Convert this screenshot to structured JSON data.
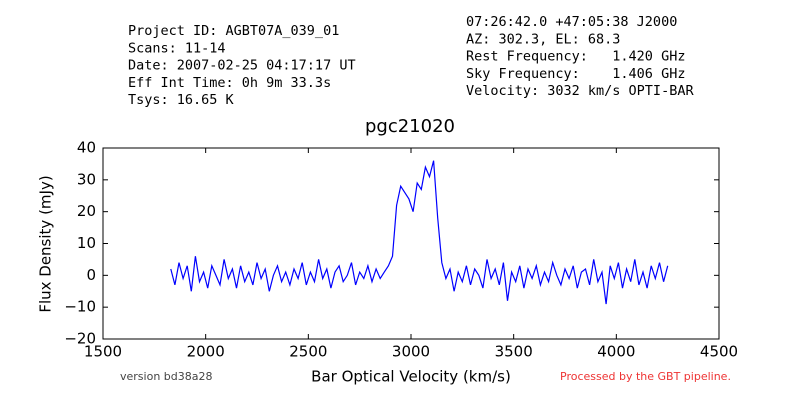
{
  "header": {
    "left": [
      "Project ID: AGBT07A_039_01",
      "Scans: 11-14",
      "Date: 2007-02-25 04:17:17 UT",
      "Eff Int Time: 0h 9m 33.3s",
      "Tsys: 16.65 K"
    ],
    "right": [
      "07:26:42.0 +47:05:38 J2000",
      "AZ: 302.3, EL: 68.3",
      "Rest Frequency:   1.420 GHz",
      "Sky Frequency:    1.406 GHz",
      "Velocity: 3032 km/s OPTI-BAR"
    ]
  },
  "footer": {
    "version": "version bd38a28",
    "pipeline": "Processed by the GBT pipeline."
  },
  "chart_data": {
    "type": "line",
    "title": "pgc21020",
    "x_label": "Bar Optical Velocity (km/s)",
    "y_label": "Flux Density (mJy)",
    "color": "#0000ff",
    "xlim": [
      1500,
      4500
    ],
    "xticks": [
      1500,
      2000,
      2500,
      3000,
      3500,
      4000,
      4500
    ],
    "ylim": [
      -20,
      40
    ],
    "yticks": [
      {
        "value": -20,
        "label": "−20"
      },
      {
        "value": -10,
        "label": "−10"
      },
      0,
      10,
      20,
      30,
      40
    ],
    "x": [
      1830,
      1850,
      1870,
      1890,
      1910,
      1930,
      1950,
      1970,
      1990,
      2010,
      2030,
      2050,
      2070,
      2090,
      2110,
      2130,
      2150,
      2170,
      2190,
      2210,
      2230,
      2250,
      2270,
      2290,
      2310,
      2330,
      2350,
      2370,
      2390,
      2410,
      2430,
      2450,
      2470,
      2490,
      2510,
      2530,
      2550,
      2570,
      2590,
      2610,
      2630,
      2650,
      2670,
      2690,
      2710,
      2730,
      2750,
      2770,
      2790,
      2810,
      2830,
      2850,
      2870,
      2890,
      2910,
      2930,
      2950,
      2970,
      2990,
      3010,
      3030,
      3050,
      3070,
      3090,
      3110,
      3130,
      3150,
      3170,
      3190,
      3210,
      3230,
      3250,
      3270,
      3290,
      3310,
      3330,
      3350,
      3370,
      3390,
      3410,
      3430,
      3450,
      3470,
      3490,
      3510,
      3530,
      3550,
      3570,
      3590,
      3610,
      3630,
      3650,
      3670,
      3690,
      3710,
      3730,
      3750,
      3770,
      3790,
      3810,
      3830,
      3850,
      3870,
      3890,
      3910,
      3930,
      3950,
      3970,
      3990,
      4010,
      4030,
      4050,
      4070,
      4090,
      4110,
      4130,
      4150,
      4170,
      4190,
      4210,
      4230,
      4250
    ],
    "values": [
      2,
      -3,
      4,
      -1,
      3,
      -5,
      6,
      -2,
      1,
      -4,
      3,
      0,
      -3,
      5,
      -1,
      2,
      -4,
      3,
      -2,
      1,
      -3,
      4,
      -1,
      2,
      -5,
      0,
      3,
      -2,
      1,
      -3,
      2,
      -1,
      4,
      -3,
      1,
      -2,
      5,
      -1,
      2,
      -4,
      1,
      3,
      -2,
      0,
      4,
      -3,
      1,
      -1,
      3,
      -2,
      2,
      -1,
      1,
      3,
      6,
      22,
      28,
      26,
      24,
      20,
      29,
      27,
      34,
      31,
      36,
      18,
      4,
      -1,
      2,
      -5,
      1,
      -2,
      3,
      -3,
      2,
      0,
      -4,
      5,
      -1,
      2,
      -3,
      4,
      -8,
      1,
      -2,
      3,
      -4,
      2,
      -1,
      3,
      -3,
      1,
      -2,
      4,
      0,
      -3,
      2,
      -1,
      3,
      -4,
      1,
      2,
      -3,
      5,
      -2,
      1,
      -9,
      3,
      -1,
      4,
      -4,
      2,
      -2,
      5,
      -3,
      1,
      -4,
      3,
      -1,
      4,
      -2,
      3
    ]
  }
}
